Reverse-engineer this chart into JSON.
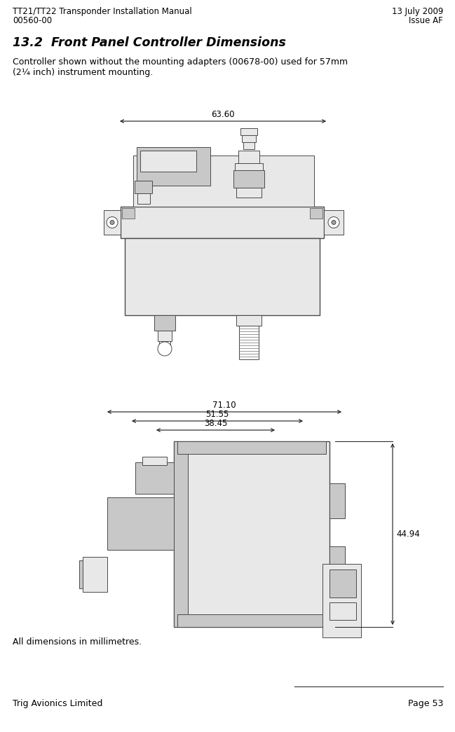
{
  "header_left_line1": "TT21/TT22 Transponder Installation Manual",
  "header_left_line2": "00560-00",
  "header_right_line1": "13 July 2009",
  "header_right_line2": "Issue AF",
  "section_title": "13.2  Front Panel Controller Dimensions",
  "body_text_line1": "Controller shown without the mounting adapters (00678-00) used for 57mm",
  "body_text_line2": "(2¼ inch) instrument mounting.",
  "dim_top": "63.60",
  "dim_side1": "71.10",
  "dim_side2": "51.55",
  "dim_side3": "38.45",
  "dim_height": "44.94",
  "footer_note": "All dimensions in millimetres.",
  "footer_left": "Trig Avionics Limited",
  "footer_right": "Page 53",
  "bg_color": "#ffffff",
  "text_color": "#000000",
  "dim_line_color": "#1a1a1a",
  "drawing_line_color": "#4a4a4a",
  "drawing_fill_light": "#e8e8e8",
  "drawing_fill_mid": "#c8c8c8",
  "drawing_fill_dark": "#a0a0a0"
}
